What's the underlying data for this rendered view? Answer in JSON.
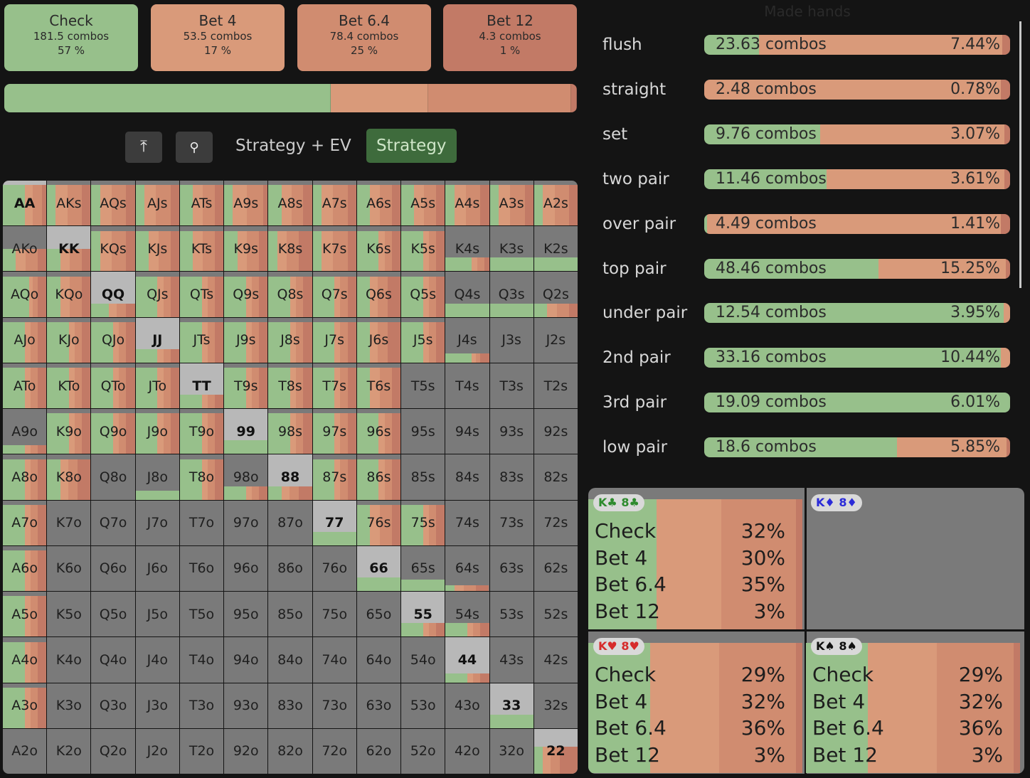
{
  "colors": {
    "check": "#97c08b",
    "bet4": "#d99a7a",
    "bet64": "#d08c70",
    "bet12": "#c27a66",
    "empty": "#7a7a7a",
    "pairbg": "#b8b8b8"
  },
  "actions": [
    {
      "name": "Check",
      "combos": "181.5 combos",
      "pct": "57 %",
      "frac": 0.57,
      "color": "#97c08b"
    },
    {
      "name": "Bet 4",
      "combos": "53.5 combos",
      "pct": "17 %",
      "frac": 0.17,
      "color": "#d99a7a"
    },
    {
      "name": "Bet 6.4",
      "combos": "78.4 combos",
      "pct": "25 %",
      "frac": 0.25,
      "color": "#d08c70"
    },
    {
      "name": "Bet 12",
      "combos": "4.3 combos",
      "pct": "1 %",
      "frac": 0.01,
      "color": "#c27a66"
    }
  ],
  "tabs": {
    "strategy_ev": "Strategy + EV",
    "strategy": "Strategy"
  },
  "toolbar": {
    "top_icon": "⤒",
    "search_icon": "🔍"
  },
  "grid_ranks": [
    "A",
    "K",
    "Q",
    "J",
    "T",
    "9",
    "8",
    "7",
    "6",
    "5",
    "4",
    "3",
    "2"
  ],
  "grid_fills": [
    [
      [
        0.9,
        0.5,
        0.1
      ],
      [
        0.9,
        0.2,
        0.2
      ],
      [
        0.9,
        0.2,
        0.2
      ],
      [
        0.9,
        0.2,
        0.2
      ],
      [
        0.9,
        0.3,
        0.2
      ],
      [
        0.9,
        0.2,
        0.1
      ],
      [
        0.9,
        0.3,
        0.2
      ],
      [
        0.9,
        0.2,
        0.2
      ],
      [
        0.9,
        0.3,
        0.2
      ],
      [
        0.9,
        0.3,
        0.2
      ],
      [
        0.9,
        0.2,
        0.2
      ],
      [
        0.9,
        0.2,
        0.2
      ],
      [
        0.9,
        0.2,
        0.2
      ]
    ],
    [
      [
        0.5,
        0.3,
        0.2
      ],
      [
        0.5,
        0.3,
        0.2
      ],
      [
        0.9,
        0.2,
        0.2
      ],
      [
        0.9,
        0.3,
        0.2
      ],
      [
        0.9,
        0.3,
        0.2
      ],
      [
        0.9,
        0.3,
        0.2
      ],
      [
        0.9,
        0.2,
        0.3
      ],
      [
        0.9,
        0.2,
        0.2
      ],
      [
        0.9,
        0.5,
        0.2
      ],
      [
        0.9,
        0.5,
        0.2
      ],
      [
        0.3,
        0.6,
        0.1
      ],
      [
        0.3,
        1,
        0
      ],
      [
        0.3,
        1,
        0
      ]
    ],
    [
      [
        0.9,
        0.6,
        0.2
      ],
      [
        0.9,
        0.3,
        0.2
      ],
      [
        0.3,
        0.4,
        0.2
      ],
      [
        0.9,
        0.5,
        0.2
      ],
      [
        0.9,
        0.5,
        0.2
      ],
      [
        0.9,
        0.5,
        0.2
      ],
      [
        0.9,
        0.5,
        0.2
      ],
      [
        0.9,
        0.5,
        0.2
      ],
      [
        0.9,
        0.3,
        0.3
      ],
      [
        0.9,
        0.5,
        0.2
      ],
      [
        0.3,
        1,
        0
      ],
      [
        0.3,
        1,
        0
      ],
      [
        0.3,
        0.3,
        0.2
      ]
    ],
    [
      [
        0.9,
        0.5,
        0.2
      ],
      [
        0.9,
        0.5,
        0.2
      ],
      [
        0.9,
        0.5,
        0.2
      ],
      [
        0.3,
        0.5,
        0.2
      ],
      [
        0.9,
        0.5,
        0.2
      ],
      [
        0.9,
        0.5,
        0.2
      ],
      [
        0.9,
        0.5,
        0.2
      ],
      [
        0.9,
        0.5,
        0.2
      ],
      [
        0.9,
        0.3,
        0.3
      ],
      [
        0.9,
        0.5,
        0.2
      ],
      [
        0.2,
        0.6,
        0.2
      ],
      [
        0,
        0.5,
        0.2
      ],
      [
        0,
        0.5,
        0.2
      ]
    ],
    [
      [
        0.9,
        0.5,
        0.2
      ],
      [
        0.9,
        0.5,
        0.2
      ],
      [
        0.9,
        0.5,
        0.2
      ],
      [
        0.9,
        0.5,
        0.2
      ],
      [
        0.3,
        0.5,
        0.2
      ],
      [
        0.9,
        0.5,
        0.2
      ],
      [
        0.9,
        0.5,
        0.2
      ],
      [
        0.9,
        0.5,
        0.2
      ],
      [
        0.9,
        0.3,
        0.2
      ],
      [
        0,
        0.5,
        0.2
      ],
      [
        0,
        0.5,
        0.2
      ],
      [
        0,
        0.5,
        0.2
      ],
      [
        0,
        0.5,
        0.2
      ]
    ],
    [
      [
        0.2,
        0.5,
        0.2
      ],
      [
        0.9,
        0.5,
        0.2
      ],
      [
        0.9,
        0.5,
        0.2
      ],
      [
        0.9,
        0.5,
        0.2
      ],
      [
        0.9,
        0.5,
        0.2
      ],
      [
        0.3,
        1,
        0
      ],
      [
        0.9,
        0.5,
        0.2
      ],
      [
        0.9,
        0.5,
        0.2
      ],
      [
        0.9,
        0.5,
        0.2
      ],
      [
        0,
        0.5,
        0.2
      ],
      [
        0,
        0.5,
        0.2
      ],
      [
        0,
        0.5,
        0.2
      ],
      [
        0,
        0.5,
        0.2
      ]
    ],
    [
      [
        0.9,
        0.5,
        0.2
      ],
      [
        0.9,
        0.3,
        0.3
      ],
      [
        0,
        0.5,
        0.2
      ],
      [
        0.2,
        1,
        0
      ],
      [
        0.9,
        0.5,
        0.2
      ],
      [
        0.3,
        0.5,
        0.2
      ],
      [
        0.3,
        0.3,
        0.3
      ],
      [
        0.9,
        0.5,
        0.2
      ],
      [
        0.9,
        0.5,
        0.2
      ],
      [
        0,
        0.5,
        0.2
      ],
      [
        0,
        0.5,
        0.2
      ],
      [
        0,
        0.5,
        0.2
      ],
      [
        0,
        0.5,
        0.2
      ]
    ],
    [
      [
        0.9,
        0.5,
        0.2
      ],
      [
        0,
        0.5,
        0.2
      ],
      [
        0,
        0.5,
        0.2
      ],
      [
        0,
        0.5,
        0.2
      ],
      [
        0,
        0.5,
        0.2
      ],
      [
        0,
        0.5,
        0.2
      ],
      [
        0,
        0.5,
        0.2
      ],
      [
        0.3,
        1,
        0
      ],
      [
        0.9,
        0.3,
        0.2
      ],
      [
        0.9,
        0.5,
        0.2
      ],
      [
        0,
        0.5,
        0.2
      ],
      [
        0,
        0.5,
        0.2
      ],
      [
        0,
        0.5,
        0.2
      ]
    ],
    [
      [
        0.9,
        0.5,
        0.2
      ],
      [
        0,
        0.5,
        0.2
      ],
      [
        0,
        0.5,
        0.2
      ],
      [
        0,
        0.5,
        0.2
      ],
      [
        0,
        0.5,
        0.2
      ],
      [
        0,
        0.5,
        0.2
      ],
      [
        0,
        0.5,
        0.2
      ],
      [
        0,
        0.5,
        0.2
      ],
      [
        0.3,
        1,
        0
      ],
      [
        0.25,
        1,
        0
      ],
      [
        0.12,
        0.2,
        0.3
      ],
      [
        0,
        0.5,
        0.2
      ],
      [
        0,
        0.5,
        0.2
      ]
    ],
    [
      [
        0.9,
        0.5,
        0.2
      ],
      [
        0,
        0.5,
        0.2
      ],
      [
        0,
        0.5,
        0.2
      ],
      [
        0,
        0.5,
        0.2
      ],
      [
        0,
        0.5,
        0.2
      ],
      [
        0,
        0.5,
        0.2
      ],
      [
        0,
        0.5,
        0.2
      ],
      [
        0,
        0.5,
        0.2
      ],
      [
        0,
        0.5,
        0.2
      ],
      [
        0.3,
        0.5,
        0.2
      ],
      [
        0.3,
        0.5,
        0.2
      ],
      [
        0,
        0.5,
        0.2
      ],
      [
        0,
        0.5,
        0.2
      ]
    ],
    [
      [
        0.9,
        0.5,
        0.2
      ],
      [
        0,
        0.5,
        0.2
      ],
      [
        0,
        0.5,
        0.2
      ],
      [
        0,
        0.5,
        0.2
      ],
      [
        0,
        0.5,
        0.2
      ],
      [
        0,
        0.5,
        0.2
      ],
      [
        0,
        0.5,
        0.2
      ],
      [
        0,
        0.5,
        0.2
      ],
      [
        0,
        0.5,
        0.2
      ],
      [
        0,
        0.5,
        0.2
      ],
      [
        0.2,
        0.5,
        0.2
      ],
      [
        0,
        0.5,
        0.2
      ],
      [
        0,
        0.5,
        0.2
      ]
    ],
    [
      [
        0.9,
        0.5,
        0.2
      ],
      [
        0,
        0.5,
        0.2
      ],
      [
        0,
        0.5,
        0.2
      ],
      [
        0,
        0.5,
        0.2
      ],
      [
        0,
        0.5,
        0.2
      ],
      [
        0,
        0.5,
        0.2
      ],
      [
        0,
        0.5,
        0.2
      ],
      [
        0,
        0.5,
        0.2
      ],
      [
        0,
        0.5,
        0.2
      ],
      [
        0,
        0.5,
        0.2
      ],
      [
        0,
        0.5,
        0.2
      ],
      [
        0.3,
        1,
        0
      ],
      [
        0,
        0.5,
        0.2
      ]
    ],
    [
      [
        0,
        0.5,
        0.2
      ],
      [
        0,
        0.5,
        0.2
      ],
      [
        0,
        0.5,
        0.2
      ],
      [
        0,
        0.5,
        0.2
      ],
      [
        0,
        0.5,
        0.2
      ],
      [
        0,
        0.5,
        0.2
      ],
      [
        0,
        0.5,
        0.2
      ],
      [
        0,
        0.5,
        0.2
      ],
      [
        0,
        0.5,
        0.2
      ],
      [
        0,
        0.5,
        0.2
      ],
      [
        0,
        0.5,
        0.2
      ],
      [
        0,
        0.5,
        0.2
      ],
      [
        0.6,
        0.2,
        0.4
      ]
    ]
  ],
  "made_hands": {
    "title": "Made hands",
    "rows": [
      {
        "label": "flush",
        "combos": "23.63 combos",
        "pct": "7.44%",
        "check": 0.18
      },
      {
        "label": "straight",
        "combos": "2.48 combos",
        "pct": "0.78%",
        "check": 0
      },
      {
        "label": "set",
        "combos": "9.76 combos",
        "pct": "3.07%",
        "check": 0.38
      },
      {
        "label": "two pair",
        "combos": "11.46 combos",
        "pct": "3.61%",
        "check": 0.4
      },
      {
        "label": "over pair",
        "combos": "4.49 combos",
        "pct": "1.41%",
        "check": 0.01
      },
      {
        "label": "top pair",
        "combos": "48.46 combos",
        "pct": "15.25%",
        "check": 0.57
      },
      {
        "label": "under pair",
        "combos": "12.54 combos",
        "pct": "3.95%",
        "check": 0.98
      },
      {
        "label": "2nd pair",
        "combos": "33.16 combos",
        "pct": "10.44%",
        "check": 0.97
      },
      {
        "label": "3rd pair",
        "combos": "19.09 combos",
        "pct": "6.01%",
        "check": 1.0
      },
      {
        "label": "low pair",
        "combos": "18.6 combos",
        "pct": "5.85%",
        "check": 0.63
      }
    ]
  },
  "combos": [
    {
      "chip": "K♣ 8♣",
      "chip_color": "#2e8b2e",
      "names": [
        "Check",
        "Bet 4",
        "Bet 6.4",
        "Bet 12"
      ],
      "pcts": [
        "32%",
        "30%",
        "35%",
        "3%"
      ],
      "fracs": [
        0.32,
        0.3,
        0.35,
        0.03
      ]
    },
    {
      "chip": "K♦ 8♦",
      "chip_color": "#2b2bd8",
      "names": [],
      "pcts": [],
      "fracs": []
    },
    {
      "chip": "K♥ 8♥",
      "chip_color": "#d62b2b",
      "names": [
        "Check",
        "Bet 4",
        "Bet 6.4",
        "Bet 12"
      ],
      "pcts": [
        "29%",
        "32%",
        "36%",
        "3%"
      ],
      "fracs": [
        0.29,
        0.32,
        0.36,
        0.03
      ]
    },
    {
      "chip": "K♠ 8♠",
      "chip_color": "#111111",
      "names": [
        "Check",
        "Bet 4",
        "Bet 6.4",
        "Bet 12"
      ],
      "pcts": [
        "29%",
        "32%",
        "36%",
        "3%"
      ],
      "fracs": [
        0.29,
        0.32,
        0.36,
        0.03
      ]
    }
  ]
}
